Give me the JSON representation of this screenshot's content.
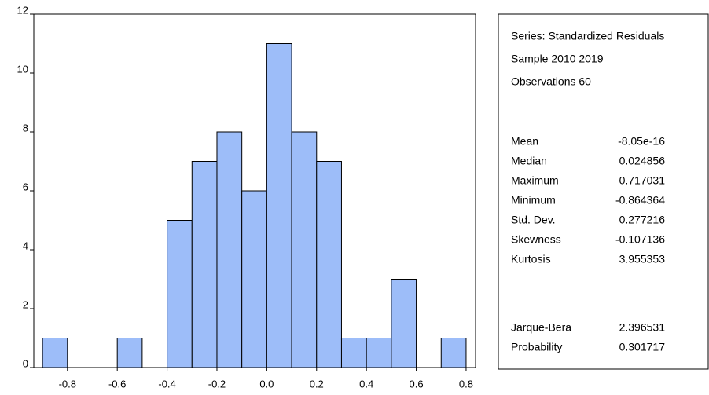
{
  "chart_data": {
    "type": "histogram",
    "bins": [
      -0.9,
      -0.8,
      -0.7,
      -0.6,
      -0.5,
      -0.4,
      -0.3,
      -0.2,
      -0.1,
      0.0,
      0.1,
      0.2,
      0.3,
      0.4,
      0.5,
      0.6,
      0.7,
      0.8
    ],
    "values": [
      1,
      0,
      0,
      1,
      0,
      5,
      7,
      8,
      6,
      11,
      8,
      7,
      1,
      1,
      3,
      0,
      1
    ],
    "color": "#9dbdf9",
    "xlim": [
      -0.935,
      0.838
    ],
    "xticks": [
      -0.8,
      -0.6,
      -0.4,
      -0.2,
      {
        "value": 0,
        "label": "0.0"
      },
      0.2,
      0.4,
      0.6,
      0.8
    ],
    "ylim": [
      0,
      12
    ],
    "yticks": [
      0,
      2,
      4,
      6,
      8,
      10,
      12
    ]
  },
  "statistics": {
    "header": [
      "Series: Standardized Residuals",
      "Sample 2010 2019",
      "Observations 60"
    ],
    "moments": [
      [
        "Mean",
        "-8.05e-16"
      ],
      [
        "Median",
        "0.024856"
      ],
      [
        "Maximum",
        "0.717031"
      ],
      [
        "Minimum",
        "-0.864364"
      ],
      [
        "Std. Dev.",
        "0.277216"
      ],
      [
        "Skewness",
        "-0.107136"
      ],
      [
        "Kurtosis",
        "3.955353"
      ]
    ],
    "tests": [
      [
        "Jarque-Bera",
        "2.396531"
      ],
      [
        "Probability",
        "0.301717"
      ]
    ]
  }
}
